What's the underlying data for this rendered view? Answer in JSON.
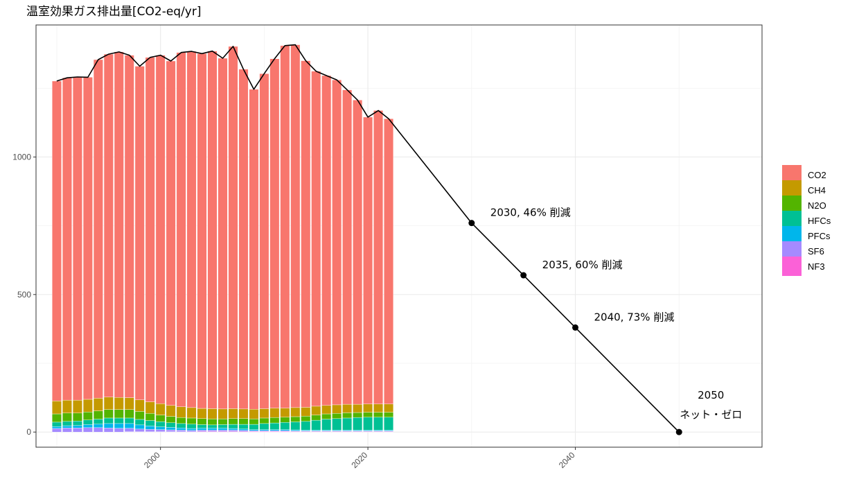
{
  "chart_data": {
    "type": "bar",
    "title": "温室効果ガス排出量[CO2-eq/yr]",
    "xlabel": "",
    "ylabel": "",
    "xlim": [
      1988,
      2058
    ],
    "ylim": [
      -55,
      1480
    ],
    "x_ticks": [
      "2000",
      "2020",
      "2040"
    ],
    "y_ticks": [
      "0",
      "500",
      "1000"
    ],
    "grid": true,
    "legend_position": "right",
    "years": [
      1990,
      1991,
      1992,
      1993,
      1994,
      1995,
      1996,
      1997,
      1998,
      1999,
      2000,
      2001,
      2002,
      2003,
      2004,
      2005,
      2006,
      2007,
      2008,
      2009,
      2010,
      2011,
      2012,
      2013,
      2014,
      2015,
      2016,
      2017,
      2018,
      2019,
      2020,
      2021,
      2022
    ],
    "series": [
      {
        "name": "CO2",
        "color": "#F8766D",
        "values": [
          1163,
          1172,
          1175,
          1171,
          1231,
          1247,
          1256,
          1245,
          1213,
          1252,
          1267,
          1252,
          1288,
          1295,
          1290,
          1300,
          1275,
          1317,
          1235,
          1163,
          1218,
          1270,
          1318,
          1319,
          1260,
          1218,
          1199,
          1181,
          1143,
          1106,
          1043,
          1067,
          1037
        ]
      },
      {
        "name": "CH4",
        "color": "#C49A00",
        "values": [
          47,
          47,
          47,
          46,
          46,
          45,
          44,
          43,
          42,
          42,
          41,
          40,
          39,
          38,
          37,
          37,
          36,
          36,
          35,
          35,
          34,
          34,
          33,
          33,
          32,
          32,
          31,
          31,
          31,
          30,
          30,
          30,
          30
        ]
      },
      {
        "name": "N2O",
        "color": "#53B400",
        "values": [
          30,
          30,
          29,
          29,
          30,
          31,
          31,
          31,
          29,
          26,
          24,
          23,
          22,
          22,
          22,
          22,
          21,
          21,
          21,
          20,
          20,
          20,
          19,
          19,
          19,
          19,
          19,
          19,
          19,
          18,
          18,
          18,
          18
        ]
      },
      {
        "name": "HFCs",
        "color": "#00C094",
        "values": [
          16,
          16,
          16,
          17,
          18,
          20,
          20,
          20,
          20,
          20,
          19,
          17,
          16,
          16,
          13,
          12,
          13,
          15,
          17,
          19,
          22,
          24,
          26,
          29,
          32,
          36,
          40,
          42,
          44,
          46,
          47,
          47,
          47
        ]
      },
      {
        "name": "PFCs",
        "color": "#00B6EB",
        "values": [
          7,
          8,
          9,
          11,
          13,
          16,
          17,
          17,
          15,
          12,
          10,
          9,
          8,
          7,
          7,
          7,
          7,
          6,
          5,
          4,
          4,
          4,
          4,
          4,
          3,
          3,
          3,
          3,
          3,
          3,
          3,
          3,
          3
        ]
      },
      {
        "name": "SF6",
        "color": "#A58AFF",
        "values": [
          13,
          15,
          15,
          16,
          16,
          15,
          14,
          13,
          10,
          9,
          8,
          7,
          6,
          5,
          5,
          5,
          5,
          5,
          4,
          3,
          3,
          3,
          3,
          2,
          2,
          2,
          2,
          2,
          2,
          2,
          2,
          2,
          2
        ]
      },
      {
        "name": "NF3",
        "color": "#FB61D7",
        "values": [
          0,
          0,
          0,
          0,
          0,
          0,
          0,
          1,
          1,
          1,
          1,
          1,
          1,
          1,
          2,
          2,
          2,
          2,
          2,
          2,
          2,
          2,
          2,
          2,
          2,
          2,
          2,
          2,
          2,
          2,
          2,
          2,
          2
        ]
      }
    ],
    "total_line": [
      {
        "x": 1990,
        "y": 1276
      },
      {
        "x": 1991,
        "y": 1288
      },
      {
        "x": 1992,
        "y": 1291
      },
      {
        "x": 1993,
        "y": 1290
      },
      {
        "x": 1994,
        "y": 1354
      },
      {
        "x": 1995,
        "y": 1374
      },
      {
        "x": 1996,
        "y": 1382
      },
      {
        "x": 1997,
        "y": 1370
      },
      {
        "x": 1998,
        "y": 1330
      },
      {
        "x": 1999,
        "y": 1362
      },
      {
        "x": 2000,
        "y": 1370
      },
      {
        "x": 2001,
        "y": 1349
      },
      {
        "x": 2002,
        "y": 1380
      },
      {
        "x": 2003,
        "y": 1384
      },
      {
        "x": 2004,
        "y": 1376
      },
      {
        "x": 2005,
        "y": 1385
      },
      {
        "x": 2006,
        "y": 1359
      },
      {
        "x": 2007,
        "y": 1402
      },
      {
        "x": 2008,
        "y": 1319
      },
      {
        "x": 2009,
        "y": 1246
      },
      {
        "x": 2010,
        "y": 1303
      },
      {
        "x": 2011,
        "y": 1357
      },
      {
        "x": 2012,
        "y": 1405
      },
      {
        "x": 2013,
        "y": 1408
      },
      {
        "x": 2014,
        "y": 1350
      },
      {
        "x": 2015,
        "y": 1312
      },
      {
        "x": 2016,
        "y": 1296
      },
      {
        "x": 2017,
        "y": 1280
      },
      {
        "x": 2018,
        "y": 1244
      },
      {
        "x": 2019,
        "y": 1207
      },
      {
        "x": 2020,
        "y": 1145
      },
      {
        "x": 2021,
        "y": 1169
      },
      {
        "x": 2022,
        "y": 1139
      },
      {
        "x": 2030,
        "y": 760
      },
      {
        "x": 2035,
        "y": 570
      },
      {
        "x": 2040,
        "y": 380
      },
      {
        "x": 2050,
        "y": 0
      }
    ],
    "target_points": [
      {
        "x": 2030,
        "y": 760,
        "label": "2030, 46% 削減"
      },
      {
        "x": 2035,
        "y": 570,
        "label": "2035, 60% 削減"
      },
      {
        "x": 2040,
        "y": 380,
        "label": "2040, 73% 削減"
      },
      {
        "x": 2050,
        "y": 0,
        "label": "2050",
        "label2": "ネット・ゼロ"
      }
    ]
  }
}
